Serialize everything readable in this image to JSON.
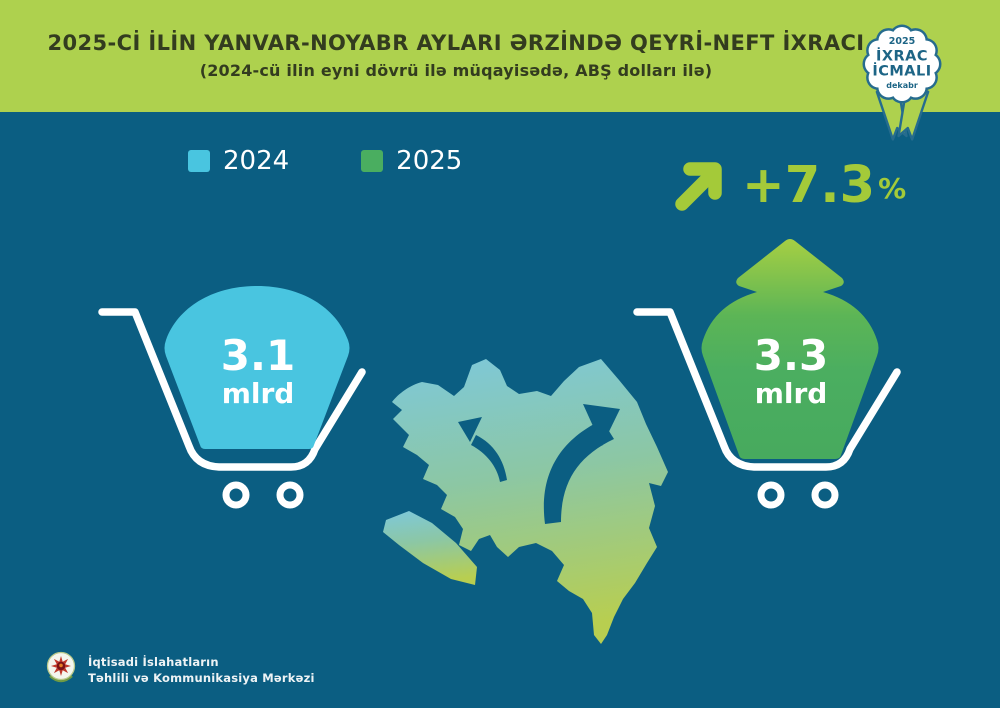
{
  "header": {
    "title": "2025-Cİ İLİN YANVAR-NOYABR AYLARI ƏRZİNDƏ QEYRİ-NEFT İXRACI",
    "subtitle": "(2024-cü ilin eyni dövrü ilə müqayisədə, ABŞ dolları ilə)"
  },
  "badge": {
    "year": "2025",
    "line1": "İXRAC",
    "line2": "İCMALI",
    "month": "dekabr"
  },
  "legend": {
    "items": [
      {
        "label": "2024",
        "color": "#49c5e0"
      },
      {
        "label": "2025",
        "color": "#4aae60"
      }
    ]
  },
  "growth": {
    "value": "+7.3",
    "unit": "%"
  },
  "carts": {
    "y2024": {
      "value": "3.1",
      "unit": "mlrd"
    },
    "y2025": {
      "value": "3.3",
      "unit": "mlrd"
    }
  },
  "footer": {
    "org_line1": "İqtisadi İslahatların",
    "org_line2": "Təhlili və Kommunikasiya Mərkəzi"
  },
  "colors": {
    "header_green": "#aed14e",
    "background_teal": "#0b5e82",
    "accent_lime": "#a4ca39",
    "cart_2024_fill": "#49c5e0",
    "cart_2025_fill": "#4aae60",
    "badge_teal": "#266c8e",
    "map_gradient_top": "#7ec8d9",
    "map_gradient_bottom": "#b8ce50",
    "text_white": "#ffffff",
    "title_dark": "#333c1f"
  },
  "chart_data": {
    "type": "bar",
    "title": "2025-ci ilin yanvar-noyabr ayları ərzində qeyri-neft ixracı",
    "subtitle": "2024-cü ilin eyni dövrü ilə müqayisədə, ABŞ dolları ilə",
    "categories": [
      "2024",
      "2025"
    ],
    "values": [
      3.1,
      3.3
    ],
    "unit": "mlrd ABŞ dolları",
    "change_percent": 7.3,
    "legend_position": "top-left",
    "annotations": [
      "+7.3%",
      "3.1 mlrd",
      "3.3 mlrd"
    ]
  }
}
